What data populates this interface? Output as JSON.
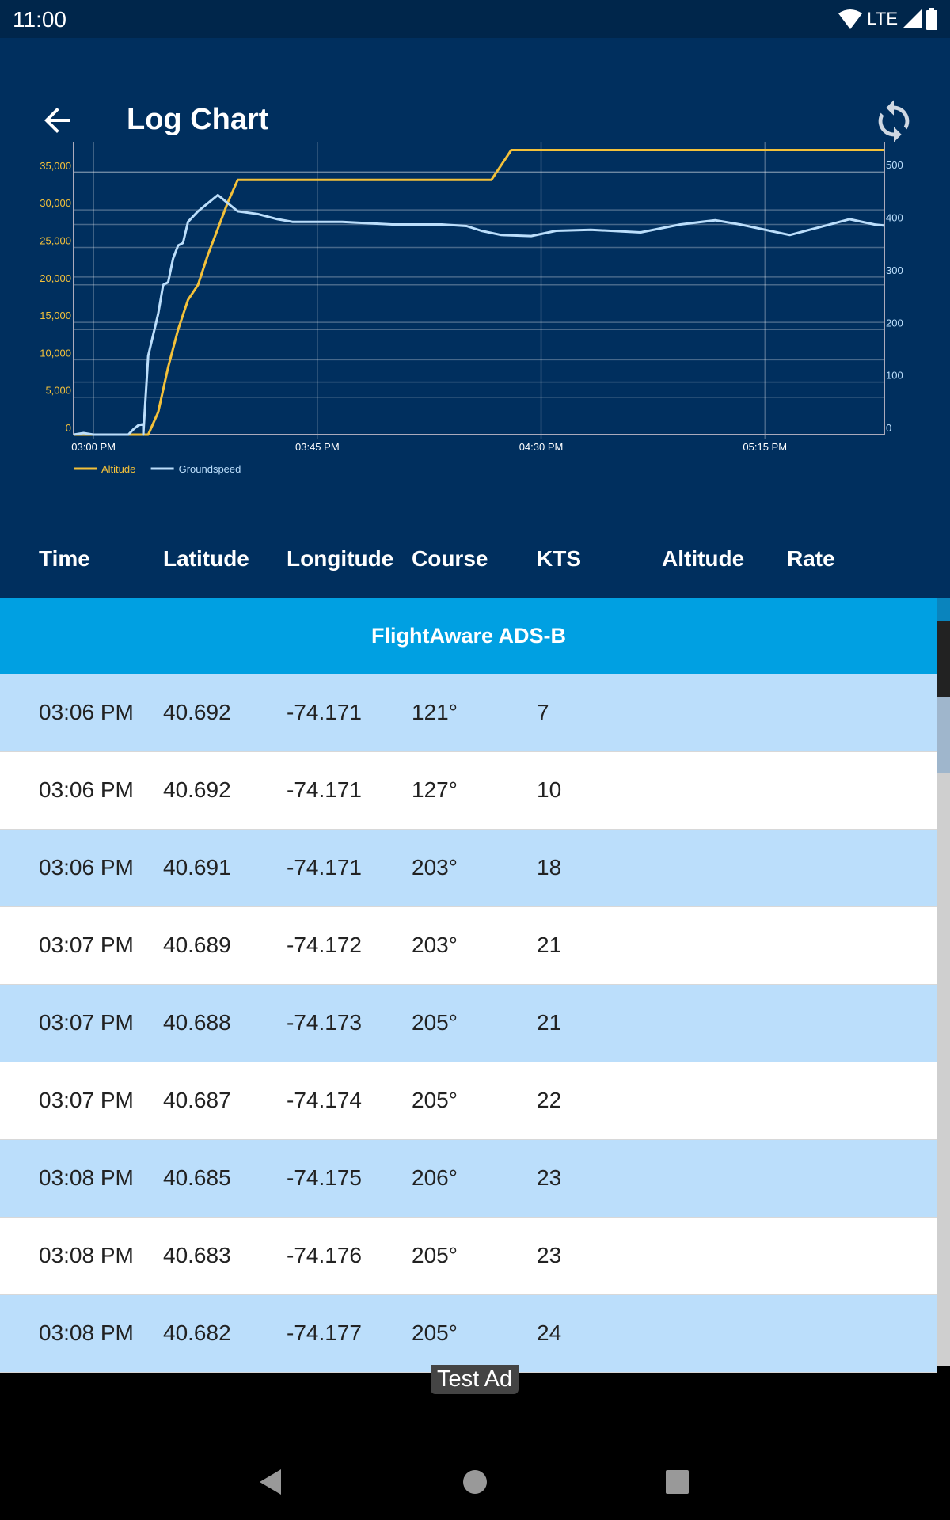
{
  "status_bar": {
    "time": "11:00",
    "network": "LTE",
    "icons": [
      "wifi-icon",
      "signal-icon",
      "battery-icon"
    ]
  },
  "toolbar": {
    "title": "Log Chart",
    "back_icon": "arrow-back-icon",
    "refresh_icon": "refresh-icon"
  },
  "colors": {
    "toolbar": "#002f5e",
    "altitude": "#f3c13a",
    "groundspeed": "#bbdefb",
    "source_band": "#00a0e2",
    "row_alt": "#bbdefb"
  },
  "chart_data": {
    "type": "line",
    "x_ticks": [
      "03:00 PM",
      "03:45 PM",
      "04:30 PM",
      "05:15 PM"
    ],
    "xlim": [
      "02:56 PM",
      "05:39 PM"
    ],
    "y_left": {
      "ticks": [
        "0",
        "5,000",
        "10,000",
        "15,000",
        "20,000",
        "25,000",
        "30,000",
        "35,000"
      ],
      "ylim": [
        0,
        39000
      ]
    },
    "y_right": {
      "ticks": [
        "0",
        "100",
        "200",
        "300",
        "400",
        "500"
      ],
      "ylim": [
        0,
        556
      ]
    },
    "grid": true,
    "legend": "bottom-left",
    "series": [
      {
        "name": "Altitude",
        "axis": "left",
        "color": "#f3c13a",
        "x": [
          "02:56 PM",
          "03:11 PM",
          "03:13 PM",
          "03:15 PM",
          "03:17 PM",
          "03:19 PM",
          "03:21 PM",
          "03:23 PM",
          "03:25 PM",
          "03:27 PM",
          "03:29 PM",
          "04:20 PM",
          "04:23 PM",
          "04:24 PM",
          "05:39 PM"
        ],
        "y": [
          0,
          0,
          3000,
          9000,
          14000,
          18000,
          20000,
          24000,
          27500,
          31000,
          34000,
          34000,
          37000,
          38000,
          38000
        ]
      },
      {
        "name": "Groundspeed",
        "axis": "right",
        "color": "#bbdefb",
        "x": [
          "02:56 PM",
          "02:58 PM",
          "03:00 PM",
          "03:07 PM",
          "03:08 PM",
          "03:09 PM",
          "03:10 PM",
          "03:10 PM",
          "03:11 PM",
          "03:12 PM",
          "03:13 PM",
          "03:14 PM",
          "03:15 PM",
          "03:16 PM",
          "03:17 PM",
          "03:18 PM",
          "03:19 PM",
          "03:21 PM",
          "03:25 PM",
          "03:29 PM",
          "03:33 PM",
          "03:37 PM",
          "03:40 PM",
          "03:50 PM",
          "04:00 PM",
          "04:10 PM",
          "04:15 PM",
          "04:18 PM",
          "04:22 PM",
          "04:28 PM",
          "04:33 PM",
          "04:40 PM",
          "04:50 PM",
          "04:58 PM",
          "05:05 PM",
          "05:10 PM",
          "05:20 PM",
          "05:26 PM",
          "05:32 PM",
          "05:37 PM",
          "05:39 PM"
        ],
        "y": [
          0,
          3,
          0,
          0,
          10,
          18,
          20,
          0,
          150,
          190,
          230,
          285,
          290,
          335,
          360,
          365,
          405,
          425,
          456,
          425,
          420,
          410,
          405,
          405,
          400,
          400,
          397,
          388,
          380,
          378,
          388,
          390,
          385,
          400,
          408,
          400,
          380,
          395,
          410,
          400,
          398
        ]
      }
    ]
  },
  "table": {
    "columns": [
      "Time",
      "Latitude",
      "Longitude",
      "Course",
      "KTS",
      "Altitude",
      "Rate"
    ],
    "source": "FlightAware ADS-B",
    "rows": [
      [
        "03:06 PM",
        "40.692",
        "-74.171",
        "121°",
        "7"
      ],
      [
        "03:06 PM",
        "40.692",
        "-74.171",
        "127°",
        "10"
      ],
      [
        "03:06 PM",
        "40.691",
        "-74.171",
        "203°",
        "18"
      ],
      [
        "03:07 PM",
        "40.689",
        "-74.172",
        "203°",
        "21"
      ],
      [
        "03:07 PM",
        "40.688",
        "-74.173",
        "205°",
        "21"
      ],
      [
        "03:07 PM",
        "40.687",
        "-74.174",
        "205°",
        "22"
      ],
      [
        "03:08 PM",
        "40.685",
        "-74.175",
        "206°",
        "23"
      ],
      [
        "03:08 PM",
        "40.683",
        "-74.176",
        "205°",
        "23"
      ],
      [
        "03:08 PM",
        "40.682",
        "-74.177",
        "205°",
        "24"
      ]
    ]
  },
  "ad": {
    "label": "Test Ad"
  },
  "nav": {
    "icons": [
      "nav-back-icon",
      "nav-home-icon",
      "nav-recents-icon"
    ]
  }
}
